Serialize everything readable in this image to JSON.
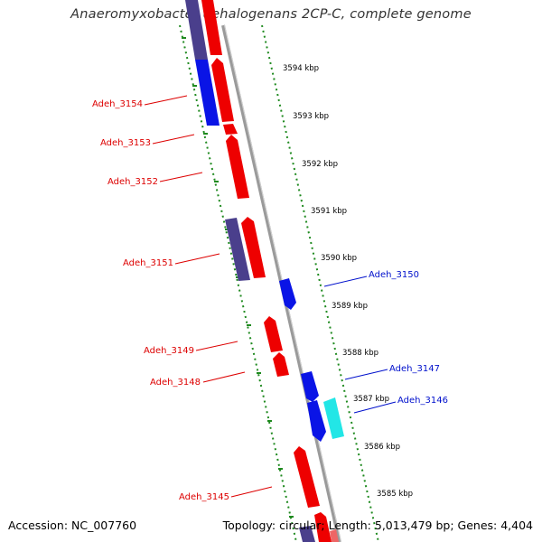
{
  "title": "Anaeromyxobacter dehalogenans 2CP-C, complete genome",
  "footer": {
    "accession": "Accession: NC_007760",
    "summary": "Topology: circular; Length: 5,013,479 bp; Genes: 4,404"
  },
  "colors": {
    "backbone": "#8c8c8c",
    "ruler": "#1f8a1f",
    "red_gene": "#ee0000",
    "blue_gene": "#0a14e6",
    "purple_gene": "#4a3f8c",
    "cyan_gene": "#22e6e6",
    "red_label": "#dd0000",
    "blue_label": "#0010cc"
  },
  "ruler_labels": [
    "3594 kbp",
    "3593 kbp",
    "3592 kbp",
    "3591 kbp",
    "3590 kbp",
    "3589 kbp",
    "3588 kbp",
    "3587 kbp",
    "3586 kbp",
    "3585 kbp"
  ],
  "gene_labels": {
    "left": [
      "Adeh_3154",
      "Adeh_3153",
      "Adeh_3152",
      "Adeh_3151",
      "Adeh_3149",
      "Adeh_3148",
      "Adeh_3145"
    ],
    "right": [
      "Adeh_3150",
      "Adeh_3147",
      "Adeh_3146"
    ]
  }
}
